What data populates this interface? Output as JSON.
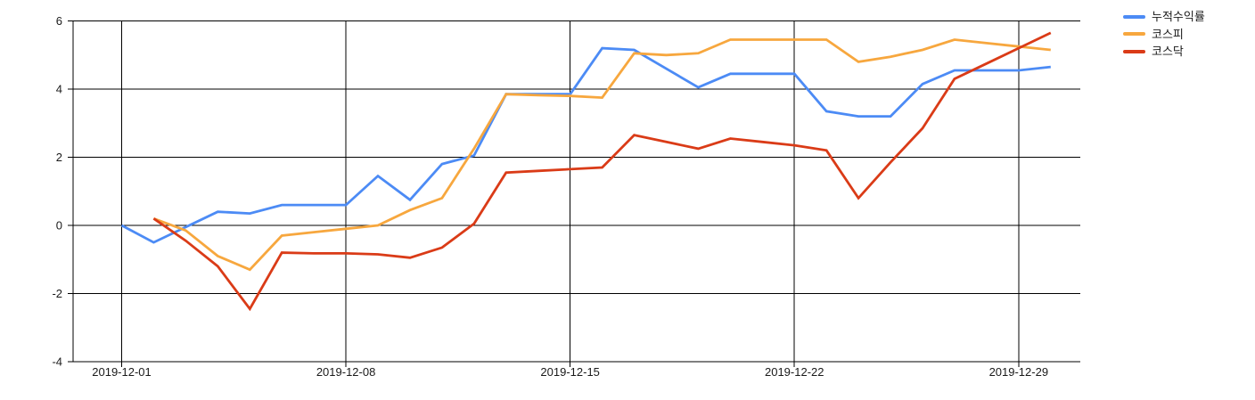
{
  "chart_data": {
    "type": "line",
    "x": [
      "2019-12-01",
      "2019-12-02",
      "2019-12-03",
      "2019-12-04",
      "2019-12-05",
      "2019-12-06",
      "2019-12-07",
      "2019-12-08",
      "2019-12-09",
      "2019-12-10",
      "2019-12-11",
      "2019-12-12",
      "2019-12-13",
      "2019-12-14",
      "2019-12-15",
      "2019-12-16",
      "2019-12-17",
      "2019-12-18",
      "2019-12-19",
      "2019-12-20",
      "2019-12-21",
      "2019-12-22",
      "2019-12-23",
      "2019-12-24",
      "2019-12-25",
      "2019-12-26",
      "2019-12-27",
      "2019-12-28",
      "2019-12-29",
      "2019-12-30"
    ],
    "series": [
      {
        "name": "누적수익률",
        "color": "#4c8bf5",
        "values": [
          0,
          -0.5,
          -0.05,
          0.4,
          0.35,
          0.6,
          0.6,
          0.6,
          1.45,
          0.75,
          1.8,
          2.05,
          3.85,
          3.85,
          3.85,
          5.2,
          5.15,
          4.6,
          4.05,
          4.45,
          4.45,
          4.45,
          3.35,
          3.2,
          3.2,
          4.15,
          4.55,
          4.55,
          4.55,
          4.65
        ]
      },
      {
        "name": "코스피",
        "color": "#f7a73e",
        "values": [
          null,
          0.2,
          -0.15,
          -0.9,
          -1.3,
          -0.3,
          -0.2,
          -0.1,
          0,
          0.45,
          0.8,
          2.25,
          3.85,
          3.82,
          3.8,
          3.75,
          5.05,
          5.0,
          5.05,
          5.45,
          5.45,
          5.45,
          5.45,
          4.8,
          4.95,
          5.15,
          5.45,
          5.35,
          5.25,
          5.15
        ]
      },
      {
        "name": "코스닥",
        "color": "#da3b17",
        "values": [
          null,
          0.2,
          -0.45,
          -1.2,
          -2.45,
          -0.8,
          -0.82,
          -0.82,
          -0.85,
          -0.95,
          -0.65,
          0.05,
          1.55,
          1.6,
          1.65,
          1.7,
          2.65,
          2.45,
          2.25,
          2.55,
          2.45,
          2.35,
          2.2,
          0.8,
          1.85,
          2.85,
          4.3,
          4.75,
          5.2,
          5.65
        ]
      }
    ],
    "x_ticks": [
      {
        "label": "2019-12-01",
        "day": 1
      },
      {
        "label": "2019-12-08",
        "day": 8
      },
      {
        "label": "2019-12-15",
        "day": 15
      },
      {
        "label": "2019-12-22",
        "day": 22
      },
      {
        "label": "2019-12-29",
        "day": 29
      }
    ],
    "y_ticks": [
      {
        "label": "6",
        "value": 6
      },
      {
        "label": "4",
        "value": 4
      },
      {
        "label": "2",
        "value": 2
      },
      {
        "label": "0",
        "value": 0
      },
      {
        "label": "-2",
        "value": -2
      },
      {
        "label": "-4",
        "value": -4
      }
    ],
    "ylim": [
      -4,
      6
    ],
    "grid": "on",
    "legend_position": "right"
  }
}
